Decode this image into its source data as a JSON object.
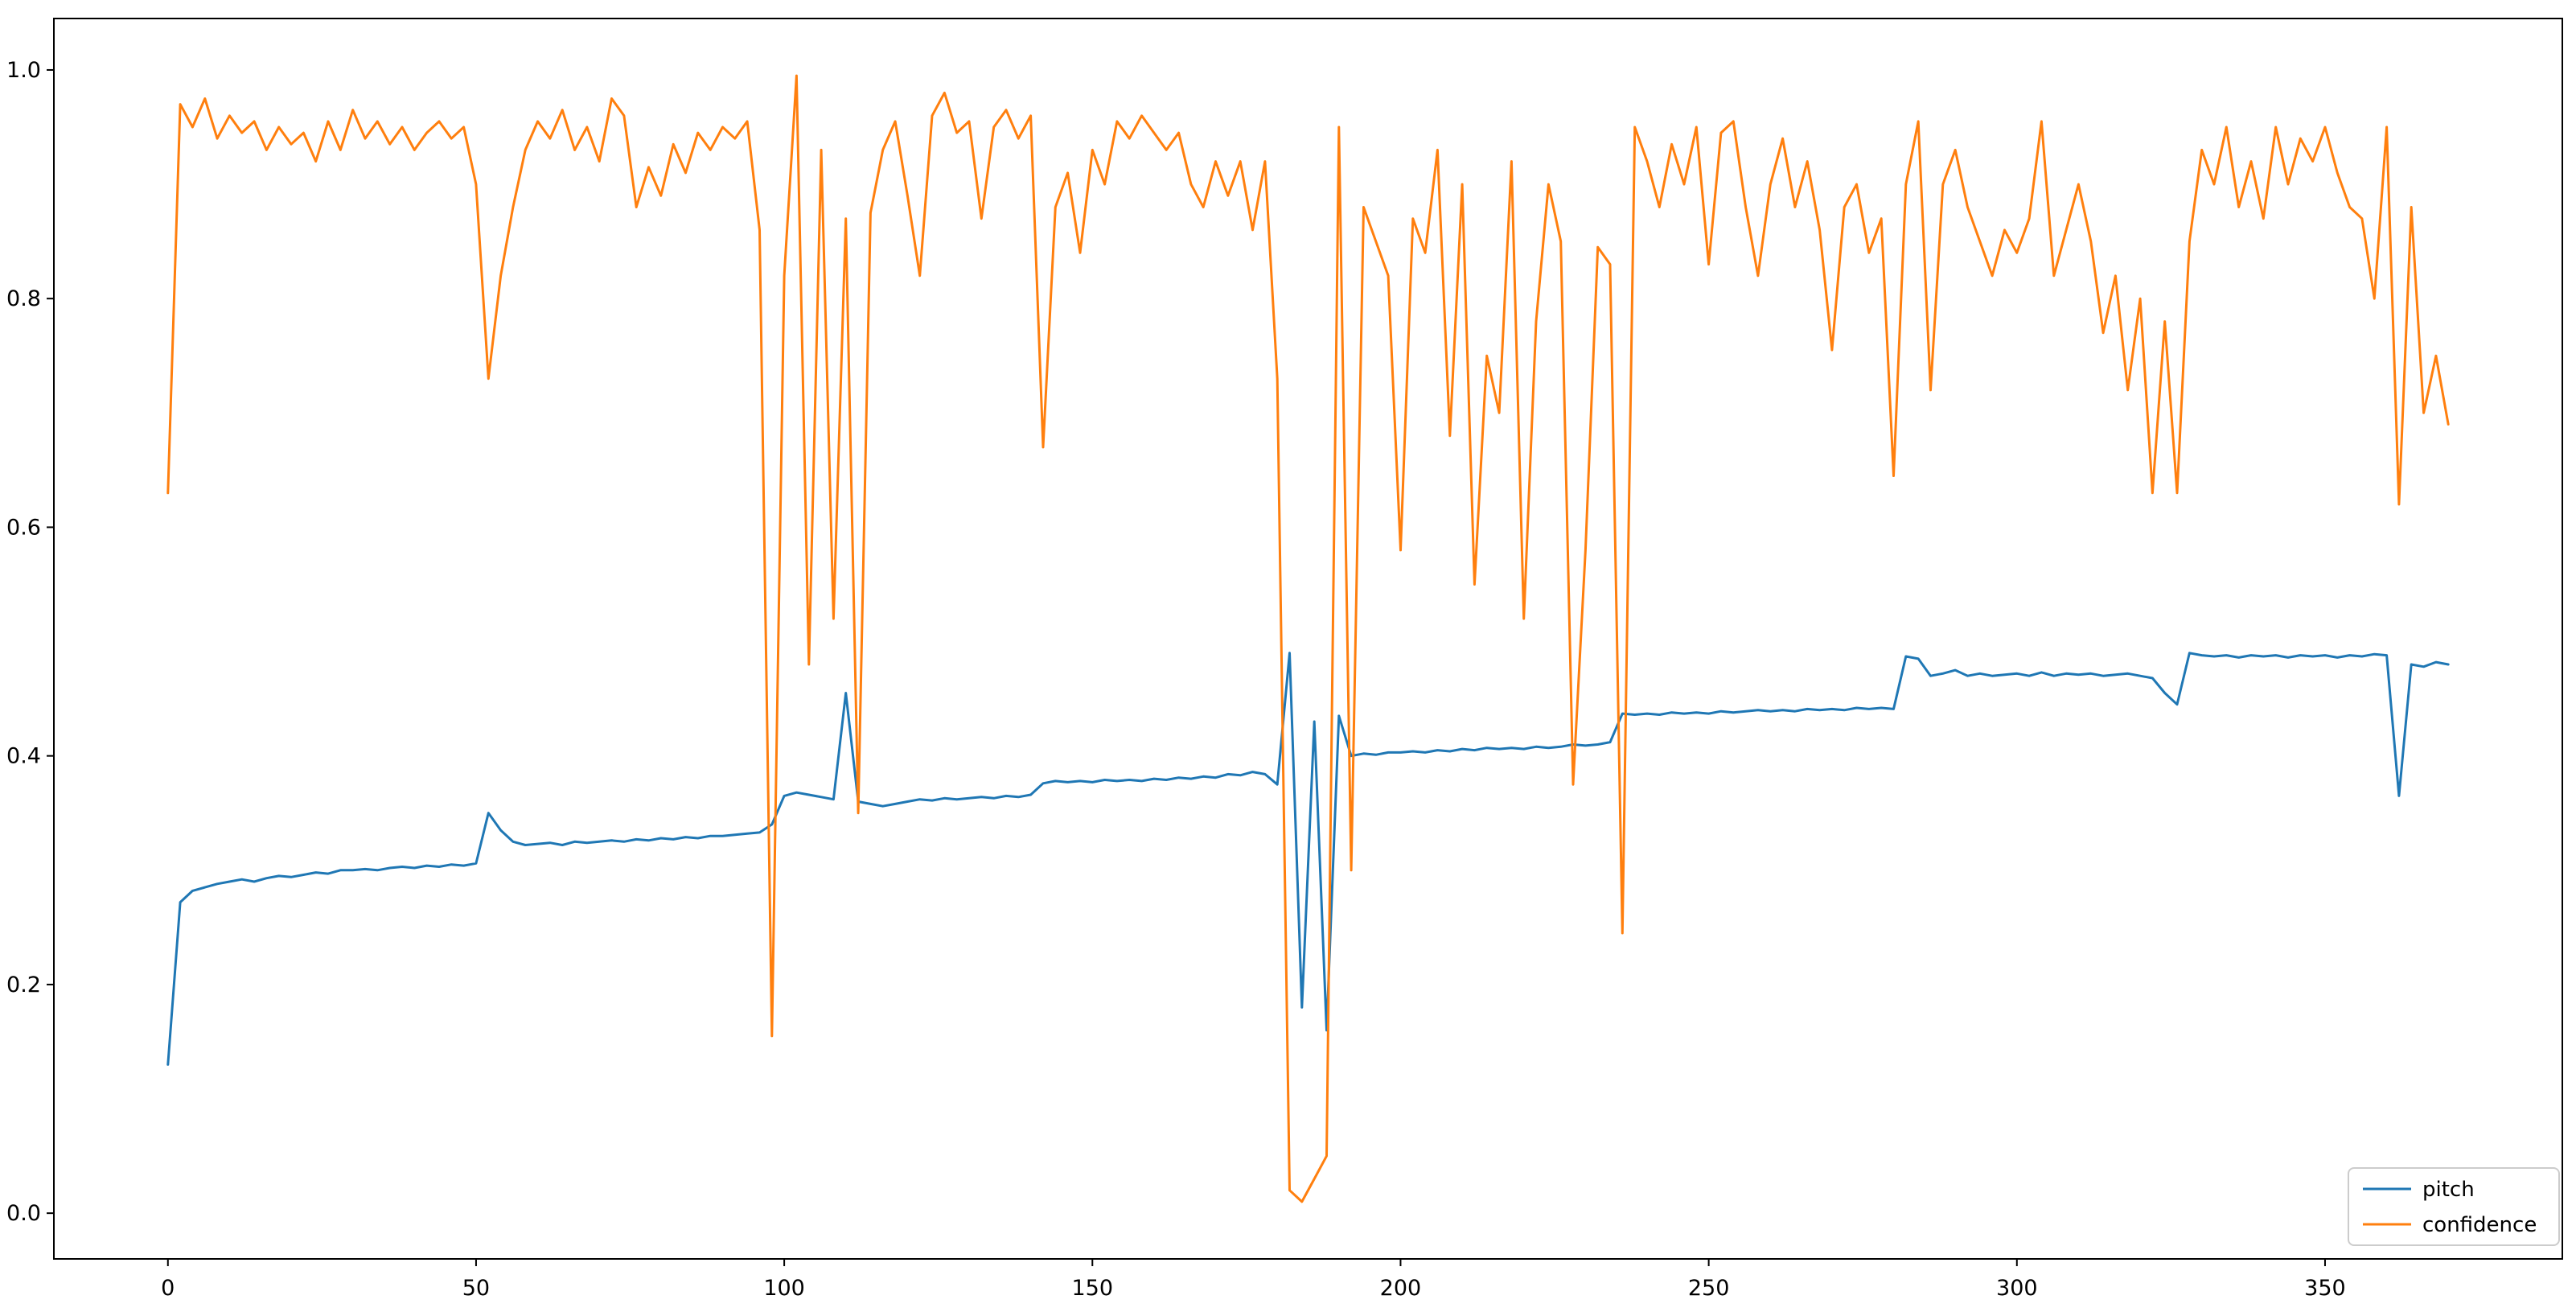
{
  "chart_data": {
    "type": "line",
    "title": "",
    "xlabel": "",
    "ylabel": "",
    "grid": false,
    "legend_position": "lower right",
    "background_color": "#ffffff",
    "frame_color": "#000000",
    "xlim": [
      -18.5,
      388.5
    ],
    "ylim": [
      -0.04,
      1.045
    ],
    "xticks": [
      {
        "value": 0,
        "label": "0"
      },
      {
        "value": 50,
        "label": "50"
      },
      {
        "value": 100,
        "label": "100"
      },
      {
        "value": 150,
        "label": "150"
      },
      {
        "value": 200,
        "label": "200"
      },
      {
        "value": 250,
        "label": "250"
      },
      {
        "value": 300,
        "label": "300"
      },
      {
        "value": 350,
        "label": "350"
      }
    ],
    "yticks": [
      {
        "value": 0.0,
        "label": "0.0"
      },
      {
        "value": 0.2,
        "label": "0.2"
      },
      {
        "value": 0.4,
        "label": "0.4"
      },
      {
        "value": 0.6,
        "label": "0.6"
      },
      {
        "value": 0.8,
        "label": "0.8"
      },
      {
        "value": 1.0,
        "label": "1.0"
      }
    ],
    "x": [
      0,
      2,
      4,
      6,
      8,
      10,
      12,
      14,
      16,
      18,
      20,
      22,
      24,
      26,
      28,
      30,
      32,
      34,
      36,
      38,
      40,
      42,
      44,
      46,
      48,
      50,
      52,
      54,
      56,
      58,
      60,
      62,
      64,
      66,
      68,
      70,
      72,
      74,
      76,
      78,
      80,
      82,
      84,
      86,
      88,
      90,
      92,
      94,
      96,
      98,
      100,
      102,
      104,
      106,
      108,
      110,
      112,
      114,
      116,
      118,
      120,
      122,
      124,
      126,
      128,
      130,
      132,
      134,
      136,
      138,
      140,
      142,
      144,
      146,
      148,
      150,
      152,
      154,
      156,
      158,
      160,
      162,
      164,
      166,
      168,
      170,
      172,
      174,
      176,
      178,
      180,
      182,
      184,
      186,
      188,
      190,
      192,
      194,
      196,
      198,
      200,
      202,
      204,
      206,
      208,
      210,
      212,
      214,
      216,
      218,
      220,
      222,
      224,
      226,
      228,
      230,
      232,
      234,
      236,
      238,
      240,
      242,
      244,
      246,
      248,
      250,
      252,
      254,
      256,
      258,
      260,
      262,
      264,
      266,
      268,
      270,
      272,
      274,
      276,
      278,
      280,
      282,
      284,
      286,
      288,
      290,
      292,
      294,
      296,
      298,
      300,
      302,
      304,
      306,
      308,
      310,
      312,
      314,
      316,
      318,
      320,
      322,
      324,
      326,
      328,
      330,
      332,
      334,
      336,
      338,
      340,
      342,
      344,
      346,
      348,
      350,
      352,
      354,
      356,
      358,
      360,
      362,
      364,
      366,
      368,
      370
    ],
    "series": [
      {
        "name": "pitch",
        "color": "#1f77b4",
        "values": [
          0.13,
          0.272,
          0.282,
          0.285,
          0.288,
          0.29,
          0.292,
          0.29,
          0.293,
          0.295,
          0.294,
          0.296,
          0.298,
          0.297,
          0.3,
          0.3,
          0.301,
          0.3,
          0.302,
          0.303,
          0.302,
          0.304,
          0.303,
          0.305,
          0.304,
          0.306,
          0.35,
          0.335,
          0.325,
          0.322,
          0.323,
          0.324,
          0.322,
          0.325,
          0.324,
          0.325,
          0.326,
          0.325,
          0.327,
          0.326,
          0.328,
          0.327,
          0.329,
          0.328,
          0.33,
          0.33,
          0.331,
          0.332,
          0.333,
          0.34,
          0.365,
          0.368,
          0.366,
          0.364,
          0.362,
          0.455,
          0.36,
          0.358,
          0.356,
          0.358,
          0.36,
          0.362,
          0.361,
          0.363,
          0.362,
          0.363,
          0.364,
          0.363,
          0.365,
          0.364,
          0.366,
          0.376,
          0.378,
          0.377,
          0.378,
          0.377,
          0.379,
          0.378,
          0.379,
          0.378,
          0.38,
          0.379,
          0.381,
          0.38,
          0.382,
          0.381,
          0.384,
          0.383,
          0.386,
          0.384,
          0.375,
          0.49,
          0.18,
          0.43,
          0.16,
          0.435,
          0.4,
          0.402,
          0.401,
          0.403,
          0.403,
          0.404,
          0.403,
          0.405,
          0.404,
          0.406,
          0.405,
          0.407,
          0.406,
          0.407,
          0.406,
          0.408,
          0.407,
          0.408,
          0.41,
          0.409,
          0.41,
          0.412,
          0.437,
          0.436,
          0.437,
          0.436,
          0.438,
          0.437,
          0.438,
          0.437,
          0.439,
          0.438,
          0.439,
          0.44,
          0.439,
          0.44,
          0.439,
          0.441,
          0.44,
          0.441,
          0.44,
          0.442,
          0.441,
          0.442,
          0.441,
          0.487,
          0.485,
          0.47,
          0.472,
          0.475,
          0.47,
          0.472,
          0.47,
          0.471,
          0.472,
          0.47,
          0.473,
          0.47,
          0.472,
          0.471,
          0.472,
          0.47,
          0.471,
          0.472,
          0.47,
          0.468,
          0.455,
          0.445,
          0.49,
          0.488,
          0.487,
          0.488,
          0.486,
          0.488,
          0.487,
          0.488,
          0.486,
          0.488,
          0.487,
          0.488,
          0.486,
          0.488,
          0.487,
          0.489,
          0.488,
          0.365,
          0.48,
          0.478,
          0.482,
          0.48
        ]
      },
      {
        "name": "confidence",
        "color": "#ff7f0e",
        "values": [
          0.63,
          0.97,
          0.95,
          0.975,
          0.94,
          0.96,
          0.945,
          0.955,
          0.93,
          0.95,
          0.935,
          0.945,
          0.92,
          0.955,
          0.93,
          0.965,
          0.94,
          0.955,
          0.935,
          0.95,
          0.93,
          0.945,
          0.955,
          0.94,
          0.95,
          0.9,
          0.73,
          0.82,
          0.88,
          0.93,
          0.955,
          0.94,
          0.965,
          0.93,
          0.95,
          0.92,
          0.975,
          0.96,
          0.88,
          0.915,
          0.89,
          0.935,
          0.91,
          0.945,
          0.93,
          0.95,
          0.94,
          0.955,
          0.86,
          0.155,
          0.82,
          0.995,
          0.48,
          0.93,
          0.52,
          0.87,
          0.35,
          0.875,
          0.93,
          0.955,
          0.89,
          0.82,
          0.96,
          0.98,
          0.945,
          0.955,
          0.87,
          0.95,
          0.965,
          0.94,
          0.96,
          0.67,
          0.88,
          0.91,
          0.84,
          0.93,
          0.9,
          0.955,
          0.94,
          0.96,
          0.945,
          0.93,
          0.945,
          0.9,
          0.88,
          0.92,
          0.89,
          0.92,
          0.86,
          0.92,
          0.73,
          0.02,
          0.01,
          0.03,
          0.05,
          0.95,
          0.3,
          0.88,
          0.85,
          0.82,
          0.58,
          0.87,
          0.84,
          0.93,
          0.68,
          0.9,
          0.55,
          0.75,
          0.7,
          0.92,
          0.52,
          0.78,
          0.9,
          0.85,
          0.375,
          0.58,
          0.845,
          0.83,
          0.245,
          0.95,
          0.92,
          0.88,
          0.935,
          0.9,
          0.95,
          0.83,
          0.945,
          0.955,
          0.88,
          0.82,
          0.9,
          0.94,
          0.88,
          0.92,
          0.86,
          0.755,
          0.88,
          0.9,
          0.84,
          0.87,
          0.645,
          0.9,
          0.955,
          0.72,
          0.9,
          0.93,
          0.88,
          0.85,
          0.82,
          0.86,
          0.84,
          0.87,
          0.955,
          0.82,
          0.86,
          0.9,
          0.85,
          0.77,
          0.82,
          0.72,
          0.8,
          0.63,
          0.78,
          0.63,
          0.85,
          0.93,
          0.9,
          0.95,
          0.88,
          0.92,
          0.87,
          0.95,
          0.9,
          0.94,
          0.92,
          0.95,
          0.91,
          0.88,
          0.87,
          0.8,
          0.95,
          0.62,
          0.88,
          0.7,
          0.75,
          0.69
        ]
      }
    ],
    "legend": {
      "entries": [
        {
          "label": "pitch"
        },
        {
          "label": "confidence"
        }
      ]
    }
  }
}
